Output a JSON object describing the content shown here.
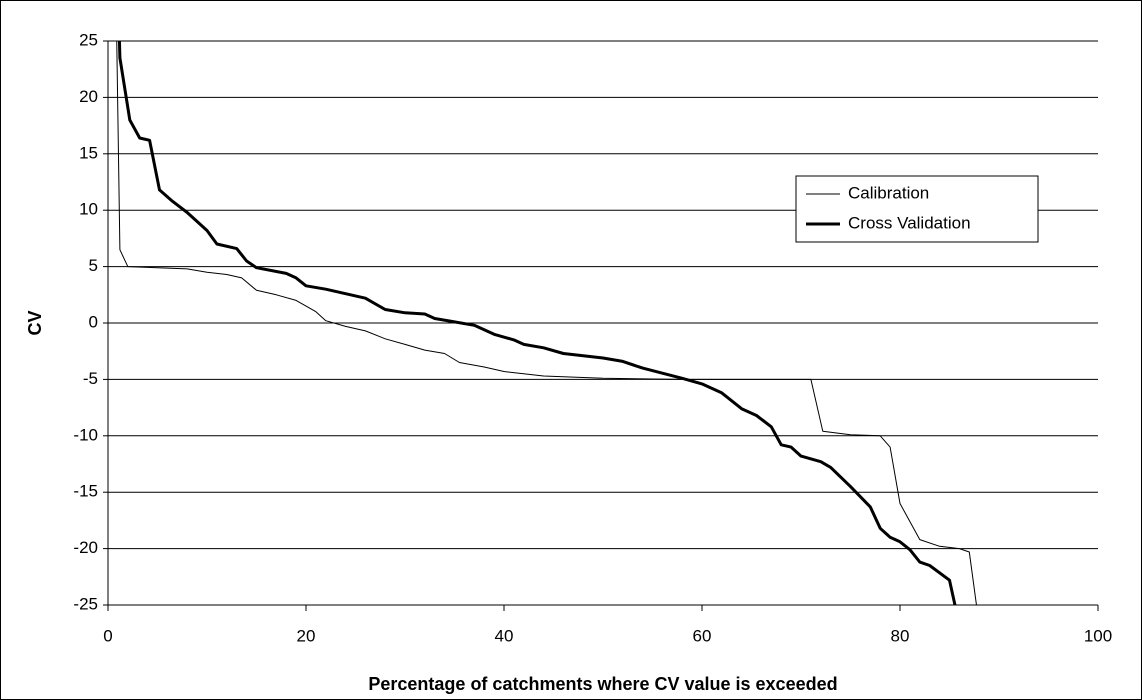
{
  "chart_data": {
    "type": "line",
    "x_label": "Percentage of catchments where CV value is exceeded",
    "y_label": "CV",
    "xlim": [
      0,
      100
    ],
    "xticks": [
      0,
      20,
      40,
      60,
      80,
      100
    ],
    "ylim": [
      -25,
      25
    ],
    "yticks": [
      -25,
      -20,
      -15,
      -10,
      -5,
      0,
      5,
      10,
      15,
      20,
      25
    ],
    "grid": true,
    "legend": "right",
    "series": [
      {
        "name": "Calibration",
        "color": "#000000",
        "line_width": 1,
        "x": [
          0.8,
          1.2,
          2,
          8,
          10,
          12,
          13.5,
          15,
          17,
          19,
          21,
          22,
          24,
          26,
          28,
          30,
          32,
          34,
          35.5,
          38,
          40,
          44,
          50,
          58,
          71,
          72.2,
          75,
          78,
          79,
          80,
          82,
          84,
          86,
          87,
          88.5
        ],
        "values": [
          30,
          6.5,
          5,
          4.8,
          4.5,
          4.3,
          4,
          2.9,
          2.5,
          2,
          1,
          0.2,
          -0.3,
          -0.7,
          -1.4,
          -1.9,
          -2.4,
          -2.7,
          -3.5,
          -3.9,
          -4.3,
          -4.7,
          -4.9,
          -5,
          -5,
          -9.6,
          -9.9,
          -10,
          -11,
          -16,
          -19.2,
          -19.8,
          -20,
          -20.3,
          -30
        ]
      },
      {
        "name": "Cross Validation",
        "color": "#000000",
        "line_width": 3,
        "x": [
          1,
          1.2,
          2.2,
          3.2,
          4.2,
          5.2,
          6.5,
          8,
          10,
          11,
          13,
          14,
          15,
          18,
          19,
          20,
          22,
          24,
          26,
          28,
          30,
          32,
          33,
          35,
          37,
          39,
          41,
          42,
          44,
          46,
          50,
          52,
          54,
          58,
          60,
          62,
          64,
          65.5,
          67,
          68,
          69,
          70,
          72,
          73,
          75,
          77,
          78,
          79,
          80,
          81,
          82,
          83,
          85,
          86.3
        ],
        "values": [
          30,
          23.5,
          18,
          16.4,
          16.2,
          11.8,
          10.8,
          9.8,
          8.2,
          7,
          6.6,
          5.5,
          4.9,
          4.4,
          4,
          3.3,
          3,
          2.6,
          2.2,
          1.2,
          0.9,
          0.8,
          0.4,
          0.1,
          -0.2,
          -1,
          -1.5,
          -1.9,
          -2.2,
          -2.7,
          -3.1,
          -3.4,
          -4,
          -4.9,
          -5.4,
          -6.2,
          -7.6,
          -8.2,
          -9.2,
          -10.8,
          -11,
          -11.8,
          -12.3,
          -12.8,
          -14.5,
          -16.3,
          -18.2,
          -19,
          -19.4,
          -20.1,
          -21.2,
          -21.5,
          -22.8,
          -28
        ]
      }
    ]
  }
}
